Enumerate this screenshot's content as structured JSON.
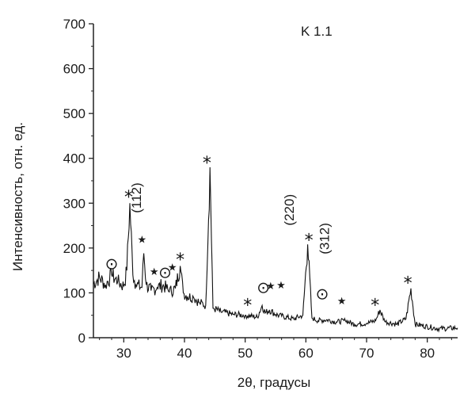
{
  "chart_data": {
    "type": "line",
    "sample_label": "K 1.1",
    "xlabel": "2θ, градусы",
    "ylabel": "Интенсивность, отн. ед.",
    "xlim": [
      25,
      85
    ],
    "ylim": [
      0,
      700
    ],
    "xticks": [
      30,
      40,
      50,
      60,
      70,
      80
    ],
    "yticks": [
      0,
      100,
      200,
      300,
      400,
      500,
      600,
      700
    ],
    "series": [
      {
        "values": [
          [
            25,
            120
          ],
          [
            26,
            135
          ],
          [
            27,
            118
          ],
          [
            28,
            140
          ],
          [
            29,
            125
          ],
          [
            30,
            115
          ],
          [
            30.5,
            150
          ],
          [
            31,
            300
          ],
          [
            31.5,
            140
          ],
          [
            32,
            118
          ],
          [
            33,
            112
          ],
          [
            33.3,
            188
          ],
          [
            33.7,
            118
          ],
          [
            34.5,
            105
          ],
          [
            35.5,
            112
          ],
          [
            36.5,
            118
          ],
          [
            37.5,
            102
          ],
          [
            38.5,
            110
          ],
          [
            39.3,
            160
          ],
          [
            39.8,
            100
          ],
          [
            40.5,
            92
          ],
          [
            41.5,
            90
          ],
          [
            42.5,
            78
          ],
          [
            43.5,
            72
          ],
          [
            44.2,
            380
          ],
          [
            44.7,
            66
          ],
          [
            46,
            58
          ],
          [
            48,
            52
          ],
          [
            50,
            50
          ],
          [
            52,
            46
          ],
          [
            52.8,
            72
          ],
          [
            53.3,
            55
          ],
          [
            54,
            62
          ],
          [
            55,
            52
          ],
          [
            56,
            48
          ],
          [
            58,
            42
          ],
          [
            59.5,
            50
          ],
          [
            60.3,
            208
          ],
          [
            61,
            44
          ],
          [
            62,
            38
          ],
          [
            63.5,
            40
          ],
          [
            65,
            35
          ],
          [
            66.5,
            38
          ],
          [
            68,
            30
          ],
          [
            70,
            32
          ],
          [
            71.5,
            38
          ],
          [
            72.2,
            62
          ],
          [
            73,
            36
          ],
          [
            75,
            30
          ],
          [
            76.5,
            42
          ],
          [
            77.3,
            110
          ],
          [
            78,
            30
          ],
          [
            80,
            25
          ],
          [
            82,
            20
          ],
          [
            85,
            22
          ]
        ]
      }
    ],
    "annotations": [
      {
        "text": "*",
        "x": 30.8,
        "y": 322
      },
      {
        "text": "(112)",
        "x": 32.8,
        "y": 278
      },
      {
        "text": "★",
        "x": 33.0,
        "y": 222
      },
      {
        "text": "⊙",
        "x": 28.0,
        "y": 165
      },
      {
        "text": "⊙",
        "x": 36.8,
        "y": 146
      },
      {
        "text": "★",
        "x": 35.0,
        "y": 150
      },
      {
        "text": "★",
        "x": 38.0,
        "y": 160
      },
      {
        "text": "*",
        "x": 39.3,
        "y": 182
      },
      {
        "text": "*",
        "x": 43.7,
        "y": 398
      },
      {
        "text": "*",
        "x": 50.4,
        "y": 80
      },
      {
        "text": "⊙",
        "x": 53.0,
        "y": 112
      },
      {
        "text": "★",
        "x": 54.2,
        "y": 118
      },
      {
        "text": "★",
        "x": 55.9,
        "y": 120
      },
      {
        "text": "(220)",
        "x": 58.0,
        "y": 250
      },
      {
        "text": "*",
        "x": 60.5,
        "y": 225
      },
      {
        "text": "(312)",
        "x": 63.8,
        "y": 186
      },
      {
        "text": "⊙",
        "x": 62.7,
        "y": 98
      },
      {
        "text": "★",
        "x": 65.9,
        "y": 85
      },
      {
        "text": "*",
        "x": 71.4,
        "y": 80
      },
      {
        "text": "*",
        "x": 76.8,
        "y": 130
      }
    ]
  }
}
